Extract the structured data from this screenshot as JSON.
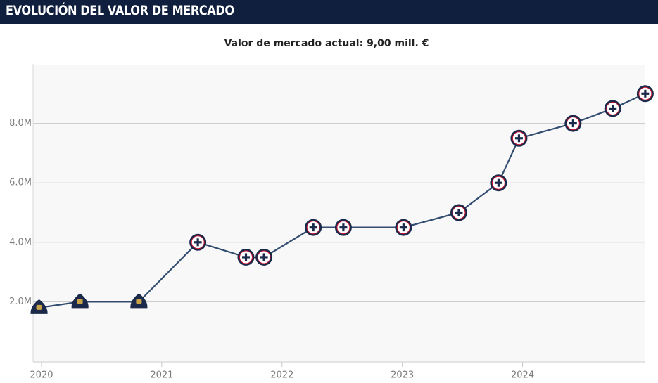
{
  "chart_data": {
    "type": "line",
    "title": "EVOLUCIÓN DEL VALOR DE MERCADO",
    "subtitle": "Valor de mercado actual: 9,00 mill. €",
    "x": [
      2019.98,
      2020.32,
      2020.81,
      2021.3,
      2021.7,
      2021.85,
      2022.26,
      2022.51,
      2023.01,
      2023.47,
      2023.8,
      2023.97,
      2024.42,
      2024.75,
      2025.02
    ],
    "series": [
      {
        "color": "#334d70",
        "values": [
          1800000,
          2000000,
          2000000,
          4000000,
          3500000,
          3500000,
          4500000,
          4500000,
          4500000,
          5000000,
          6000000,
          7500000,
          8000000,
          8500000,
          9000000
        ]
      }
    ],
    "marker_colors": [
      "#1b2a4a",
      "#1b2a4a",
      "#1b2a4a",
      "#ffffff",
      "#ffffff",
      "#ffffff",
      "#ffffff",
      "#ffffff",
      "#ffffff",
      "#ffffff",
      "#ffffff",
      "#ffffff",
      "#ffffff",
      "#ffffff",
      "#ffffff"
    ],
    "xlim": [
      2019.93,
      2025.05
    ],
    "xticks": [
      2020,
      2021,
      2022,
      2023,
      2024
    ],
    "ylim": [
      0,
      10000000
    ],
    "yticks": [
      {
        "value": 2000000,
        "label": "2.0M"
      },
      {
        "value": 4000000,
        "label": "4.0M"
      },
      {
        "value": 6000000,
        "label": "6.0M"
      },
      {
        "value": 8000000,
        "label": "8.0M"
      }
    ],
    "grid": true
  }
}
